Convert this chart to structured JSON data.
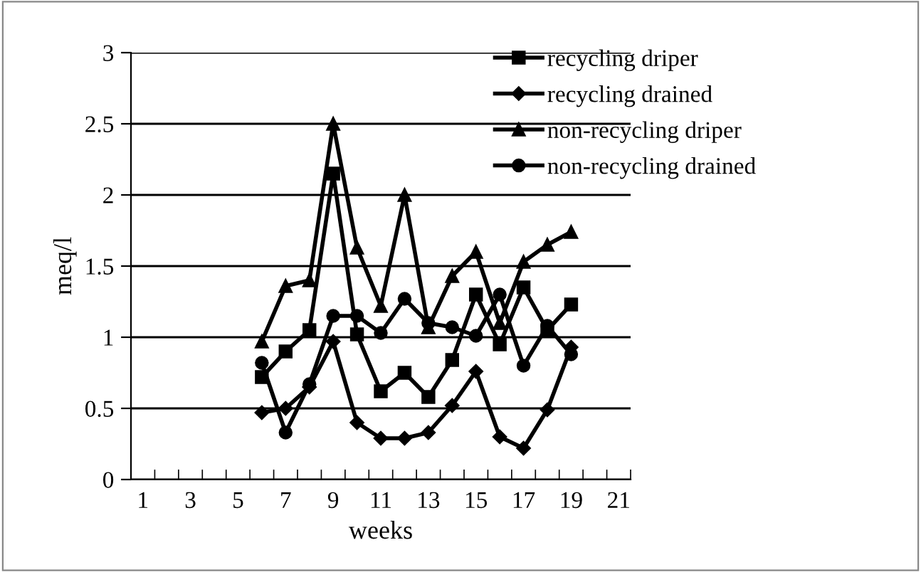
{
  "chart_data": {
    "type": "line",
    "xlabel": "weeks",
    "ylabel": "meq/l",
    "categories": [
      "1",
      null,
      "3",
      null,
      "5",
      null,
      "7",
      null,
      "9",
      null,
      "11",
      null,
      "13",
      null,
      "15",
      null,
      "17",
      null,
      "19",
      null,
      "21"
    ],
    "series": [
      {
        "name": "recycling driper",
        "color": "#000000",
        "marker": "square",
        "values": [
          null,
          null,
          null,
          null,
          null,
          0.72,
          0.9,
          1.05,
          2.15,
          1.02,
          0.62,
          0.75,
          0.58,
          0.84,
          1.3,
          0.95,
          1.35,
          1.05,
          1.23,
          null,
          null
        ]
      },
      {
        "name": "recycling drained",
        "color": "#000000",
        "marker": "diamond",
        "values": [
          null,
          null,
          null,
          null,
          null,
          0.47,
          0.5,
          0.65,
          0.97,
          0.4,
          0.29,
          0.29,
          0.33,
          0.52,
          0.76,
          0.3,
          0.22,
          0.49,
          0.93,
          null,
          null
        ]
      },
      {
        "name": "non-recycling driper",
        "color": "#000000",
        "marker": "triangle",
        "values": [
          null,
          null,
          null,
          null,
          null,
          0.97,
          1.36,
          1.4,
          2.5,
          1.63,
          1.22,
          2.0,
          1.07,
          1.43,
          1.6,
          1.1,
          1.53,
          1.65,
          1.74,
          null,
          null
        ]
      },
      {
        "name": "non-recycling drained",
        "color": "#000000",
        "marker": "circle",
        "values": [
          null,
          null,
          null,
          null,
          null,
          0.82,
          0.33,
          0.67,
          1.15,
          1.15,
          1.03,
          1.27,
          1.1,
          1.07,
          1.01,
          1.3,
          0.8,
          1.08,
          0.88,
          null,
          null
        ]
      }
    ],
    "ylim": [
      0,
      3
    ],
    "yticks": [
      0,
      0.5,
      1,
      1.5,
      2,
      2.5,
      3
    ],
    "grid": "y",
    "legend": "top right",
    "line_style": "solid"
  }
}
